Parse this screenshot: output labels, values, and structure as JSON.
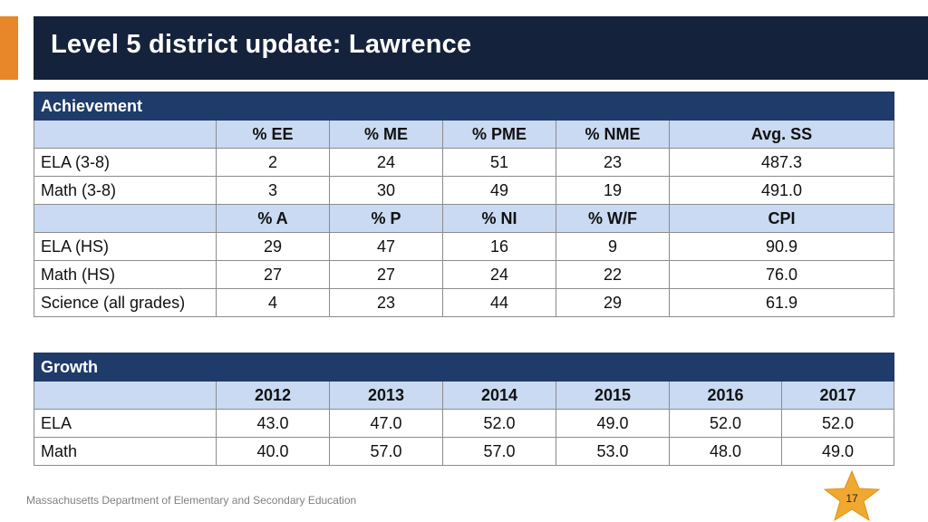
{
  "slide": {
    "title": "Level 5 district update: Lawrence",
    "footer": "Massachusetts Department of Elementary and Secondary Education",
    "page_number": "17",
    "colors": {
      "title_bar": "#15223c",
      "accent": "#e8862a",
      "table_header": "#1f3b6a",
      "subheader": "#c9daf2",
      "star": "#f0a830"
    }
  },
  "achievement": {
    "title": "Achievement",
    "header1": [
      "% EE",
      "% ME",
      "% PME",
      "% NME",
      "Avg. SS"
    ],
    "rows1": [
      {
        "label": "ELA (3-8)",
        "values": [
          "2",
          "24",
          "51",
          "23",
          "487.3"
        ]
      },
      {
        "label": "Math (3-8)",
        "values": [
          "3",
          "30",
          "49",
          "19",
          "491.0"
        ]
      }
    ],
    "header2": [
      "% A",
      "% P",
      "% NI",
      "% W/F",
      "CPI"
    ],
    "rows2": [
      {
        "label": "ELA (HS)",
        "values": [
          "29",
          "47",
          "16",
          "9",
          "90.9"
        ]
      },
      {
        "label": "Math (HS)",
        "values": [
          "27",
          "27",
          "24",
          "22",
          "76.0"
        ]
      },
      {
        "label": "Science (all grades)",
        "values": [
          "4",
          "23",
          "44",
          "29",
          "61.9"
        ]
      }
    ]
  },
  "growth": {
    "title": "Growth",
    "years": [
      "2012",
      "2013",
      "2014",
      "2015",
      "2016",
      "2017"
    ],
    "rows": [
      {
        "label": "ELA",
        "values": [
          "43.0",
          "47.0",
          "52.0",
          "49.0",
          "52.0",
          "52.0"
        ]
      },
      {
        "label": "Math",
        "values": [
          "40.0",
          "57.0",
          "57.0",
          "53.0",
          "48.0",
          "49.0"
        ]
      }
    ]
  }
}
